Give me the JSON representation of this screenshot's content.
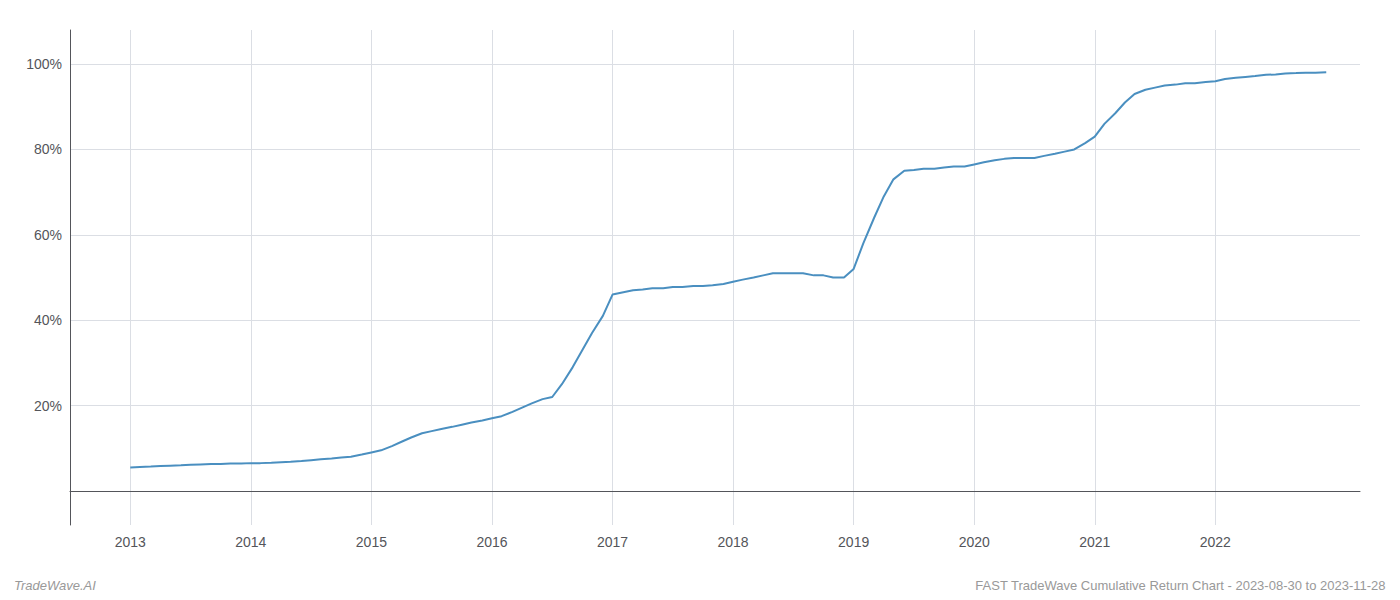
{
  "chart_data": {
    "type": "line",
    "annotations": [
      "TradeWave.AI",
      "FAST TradeWave Cumulative Return Chart - 2023-08-30 to 2023-11-28"
    ],
    "color": "#4a8fc0",
    "grid": true,
    "xlim": [
      2012.5,
      2023.2
    ],
    "xticks": [
      2013,
      2014,
      2015,
      2016,
      2017,
      2018,
      2019,
      2020,
      2021,
      2022
    ],
    "ylim": [
      -8,
      108
    ],
    "yticks": [
      {
        "value": 20,
        "label": "20%"
      },
      {
        "value": 40,
        "label": "40%"
      },
      {
        "value": 60,
        "label": "60%"
      },
      {
        "value": 80,
        "label": "80%"
      },
      {
        "value": 100,
        "label": "100%"
      }
    ],
    "x": [
      2013.0,
      2013.08,
      2013.17,
      2013.25,
      2013.33,
      2013.42,
      2013.5,
      2013.58,
      2013.67,
      2013.75,
      2013.83,
      2013.92,
      2014.0,
      2014.08,
      2014.17,
      2014.25,
      2014.33,
      2014.42,
      2014.5,
      2014.58,
      2014.67,
      2014.75,
      2014.83,
      2014.92,
      2015.0,
      2015.08,
      2015.17,
      2015.25,
      2015.33,
      2015.42,
      2015.5,
      2015.58,
      2015.67,
      2015.75,
      2015.83,
      2015.92,
      2016.0,
      2016.08,
      2016.17,
      2016.25,
      2016.33,
      2016.42,
      2016.5,
      2016.58,
      2016.67,
      2016.75,
      2016.83,
      2016.92,
      2017.0,
      2017.08,
      2017.17,
      2017.25,
      2017.33,
      2017.42,
      2017.5,
      2017.58,
      2017.67,
      2017.75,
      2017.83,
      2017.92,
      2018.0,
      2018.08,
      2018.17,
      2018.25,
      2018.33,
      2018.42,
      2018.5,
      2018.58,
      2018.67,
      2018.75,
      2018.83,
      2018.92,
      2019.0,
      2019.08,
      2019.17,
      2019.25,
      2019.33,
      2019.42,
      2019.5,
      2019.58,
      2019.67,
      2019.75,
      2019.83,
      2019.92,
      2020.0,
      2020.08,
      2020.17,
      2020.25,
      2020.33,
      2020.42,
      2020.5,
      2020.58,
      2020.67,
      2020.75,
      2020.83,
      2020.92,
      2021.0,
      2021.08,
      2021.17,
      2021.25,
      2021.33,
      2021.42,
      2021.5,
      2021.58,
      2021.67,
      2021.75,
      2021.83,
      2021.92,
      2022.0,
      2022.08,
      2022.17,
      2022.25,
      2022.33,
      2022.42,
      2022.5,
      2022.58,
      2022.67,
      2022.75,
      2022.83,
      2022.92
    ],
    "values": [
      5.5,
      5.6,
      5.7,
      5.8,
      5.9,
      6.0,
      6.1,
      6.2,
      6.3,
      6.3,
      6.4,
      6.4,
      6.5,
      6.5,
      6.6,
      6.7,
      6.8,
      7.0,
      7.2,
      7.4,
      7.6,
      7.8,
      8.0,
      8.5,
      9.0,
      9.5,
      10.5,
      11.5,
      12.5,
      13.5,
      14.0,
      14.5,
      15.0,
      15.5,
      16.0,
      16.5,
      17.0,
      17.5,
      18.5,
      19.5,
      20.5,
      21.5,
      22.0,
      25.0,
      29.0,
      33.0,
      37.0,
      41.0,
      46.0,
      46.5,
      47.0,
      47.2,
      47.5,
      47.5,
      47.8,
      47.8,
      48.0,
      48.0,
      48.2,
      48.5,
      49.0,
      49.5,
      50.0,
      50.5,
      51.0,
      51.0,
      51.0,
      51.0,
      50.5,
      50.5,
      50.0,
      50.0,
      52.0,
      58.0,
      64.0,
      69.0,
      73.0,
      75.0,
      75.2,
      75.5,
      75.5,
      75.8,
      76.0,
      76.0,
      76.5,
      77.0,
      77.5,
      77.8,
      78.0,
      78.0,
      78.0,
      78.5,
      79.0,
      79.5,
      80.0,
      81.5,
      83.0,
      86.0,
      88.5,
      91.0,
      93.0,
      94.0,
      94.5,
      95.0,
      95.2,
      95.5,
      95.5,
      95.8,
      96.0,
      96.5,
      96.8,
      97.0,
      97.2,
      97.5,
      97.6,
      97.8,
      97.9,
      98.0,
      98.0,
      98.1
    ]
  }
}
